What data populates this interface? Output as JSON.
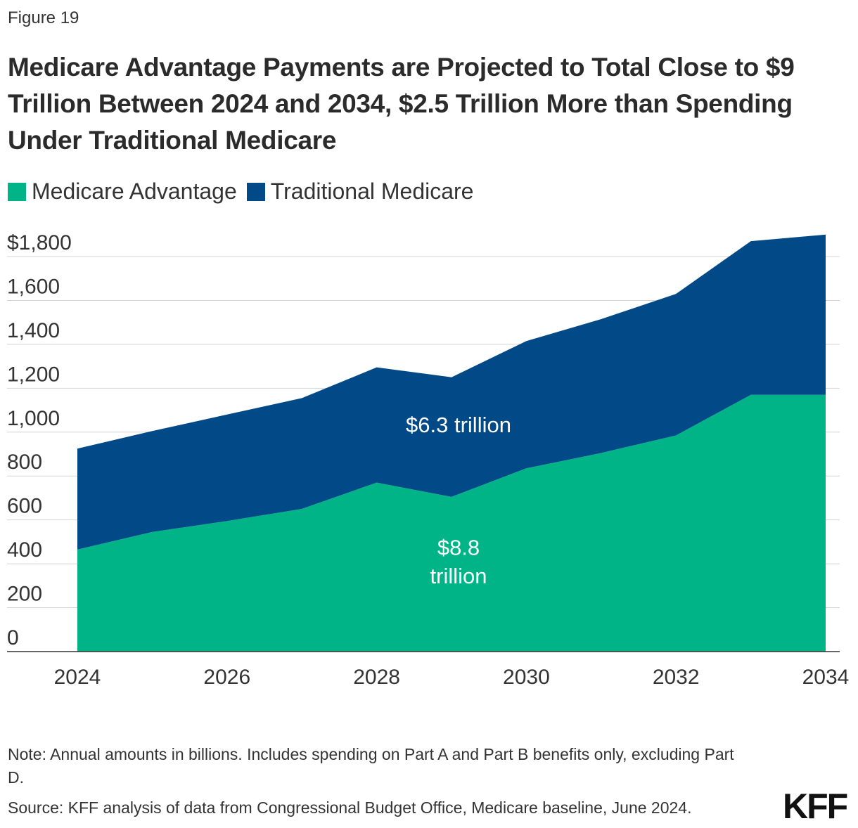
{
  "figure_label": "Figure 19",
  "title": "Medicare Advantage Payments are Projected to Total Close to $9 Trillion Between 2024 and 2034, $2.5 Trillion More than Spending Under Traditional Medicare",
  "legend": [
    {
      "label": "Medicare Advantage",
      "color": "#00b488"
    },
    {
      "label": "Traditional Medicare",
      "color": "#014a87"
    }
  ],
  "note": "Note: Annual amounts in billions. Includes spending on Part A and Part B benefits only, excluding Part D.",
  "source": "Source: KFF analysis of data from Congressional Budget Office, Medicare baseline, June 2024.",
  "logo": "KFF",
  "chart_data": {
    "type": "area",
    "stacked": true,
    "x": [
      2024,
      2025,
      2026,
      2027,
      2028,
      2029,
      2030,
      2031,
      2032,
      2033,
      2034
    ],
    "series": [
      {
        "name": "Medicare Advantage",
        "color": "#00b488",
        "values": [
          465,
          545,
          595,
          650,
          770,
          705,
          835,
          905,
          985,
          1170,
          1170
        ]
      },
      {
        "name": "Traditional Medicare",
        "color": "#014a87",
        "values": [
          460,
          460,
          485,
          505,
          525,
          545,
          580,
          610,
          645,
          700,
          730
        ]
      }
    ],
    "xlim": [
      2024,
      2034
    ],
    "ylim": [
      0,
      1900
    ],
    "y_ticks": [
      0,
      200,
      400,
      600,
      800,
      1000,
      1200,
      1400,
      1600,
      1800
    ],
    "y_tick_labels": [
      "0",
      "200",
      "400",
      "600",
      "800",
      "1,000",
      "1,200",
      "1,400",
      "1,600",
      "$1,800"
    ],
    "x_ticks": [
      2024,
      2026,
      2028,
      2030,
      2032,
      2034
    ],
    "x_tick_labels": [
      "2024",
      "2026",
      "2028",
      "2030",
      "2032",
      "2034"
    ],
    "annotations": [
      {
        "text": "$6.3 trillion",
        "x": 2029,
        "y": 1000,
        "series": "Traditional Medicare"
      },
      {
        "text": "$8.8",
        "x": 2029,
        "y": 440,
        "series": "Medicare Advantage"
      },
      {
        "text": "trillion",
        "x": 2029,
        "y": 310,
        "series": "Medicare Advantage"
      }
    ],
    "grid": true
  }
}
